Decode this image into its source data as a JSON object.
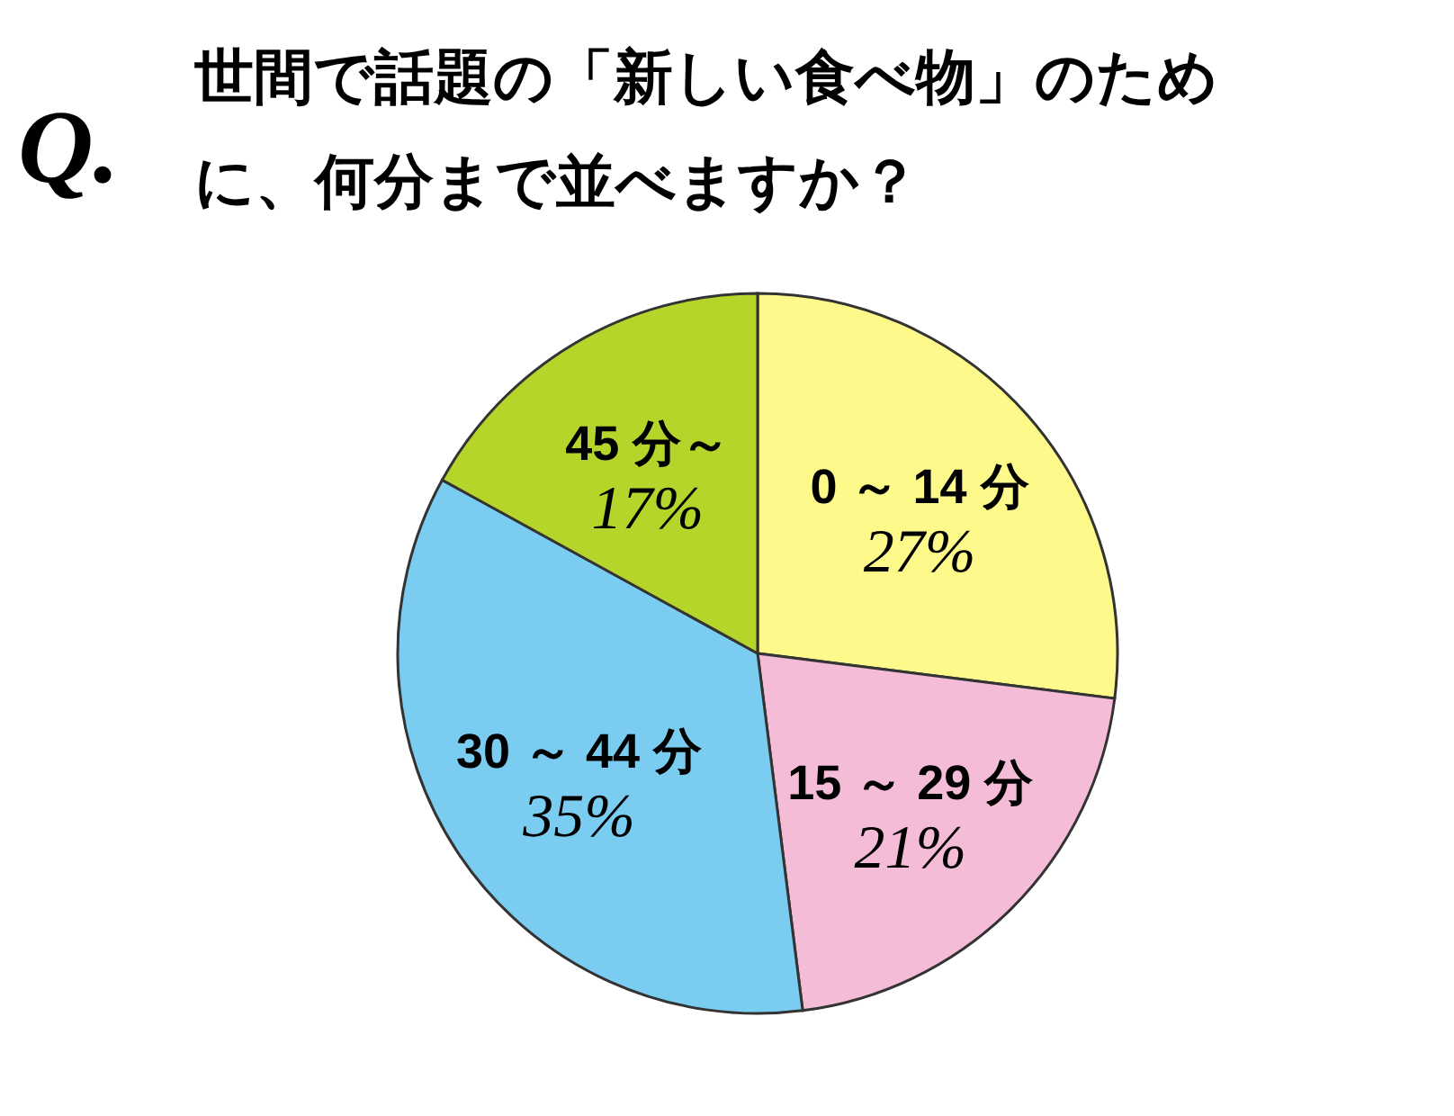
{
  "chart_data": {
    "type": "pie",
    "title": "世間で話題の「新しい食べ物」のために、何分まで並べますか？",
    "annotations": [
      "Q."
    ],
    "categories": [
      "0 ～ 14 分",
      "15 ～ 29 分",
      "30 ～ 44 分",
      "45 分～"
    ],
    "values": [
      27,
      21,
      35,
      17
    ],
    "colors": [
      "#fdf98b",
      "#f5bcd8",
      "#7accf0",
      "#b5d52b"
    ],
    "value_labels": [
      "27%",
      "21%",
      "35%",
      "17%"
    ],
    "legend": false
  }
}
